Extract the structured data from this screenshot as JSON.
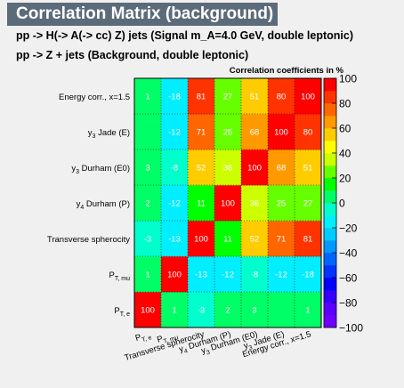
{
  "header": {
    "title": "Correlation Matrix (background)",
    "line1": "pp -> H(-> A(-> cc)  Z) jets (Signal m_A=4.0 GeV, double leptonic)",
    "line2": "pp -> Z + jets (Background, double leptonic)"
  },
  "chart_data": {
    "type": "heatmap",
    "title": "Correlation coefficients in %",
    "variables": [
      "P_{T, e}",
      "P_{T, mu}",
      "Transverse spherocity",
      "y_{4} Durham (P)",
      "y_{3} Durham (E0)",
      "y_{3} Jade (E)",
      "Energy corr., x=1.5"
    ],
    "matrix": [
      [
        100,
        1,
        -3,
        2,
        3,
        null,
        1
      ],
      [
        1,
        100,
        -13,
        -12,
        -8,
        -12,
        -18
      ],
      [
        -3,
        -13,
        100,
        11,
        52,
        71,
        81
      ],
      [
        2,
        -12,
        11,
        100,
        36,
        25,
        27
      ],
      [
        3,
        -8,
        52,
        36,
        100,
        68,
        51
      ],
      [
        null,
        -12,
        71,
        25,
        68,
        100,
        80
      ],
      [
        1,
        -18,
        81,
        27,
        51,
        80,
        100
      ]
    ],
    "zlim": [
      -100,
      100
    ],
    "colorbar_ticks": [
      "100",
      "80",
      "60",
      "40",
      "20",
      "0",
      "−20",
      "−40",
      "−60",
      "−80",
      "−100"
    ]
  }
}
